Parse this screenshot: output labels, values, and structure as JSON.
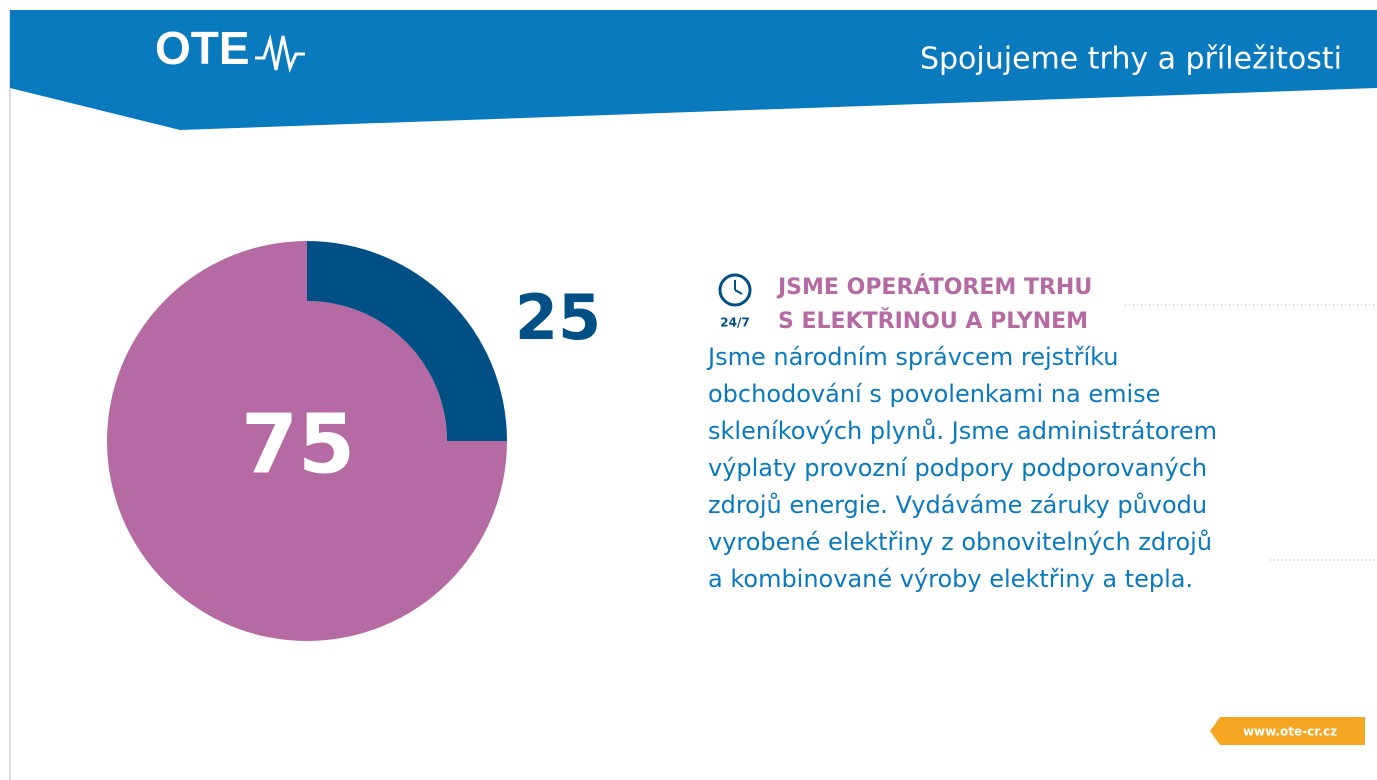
{
  "header": {
    "logo": "OTE",
    "tagline": "Spojujeme trhy a příležitosti"
  },
  "chart_data": {
    "type": "pie",
    "values": [
      25,
      75
    ],
    "colors": [
      "#004f85",
      "#b56aa4"
    ]
  },
  "section": {
    "icon_label": "24/7",
    "title_lines": [
      "JSME OPERÁTOREM TRHU",
      "S ELEKTŘINOU A PLYNEM"
    ],
    "body_lines": [
      "Jsme národním správcem rejstříku",
      "obchodování s povolenkami na emise",
      "skleníkových plynů. Jsme administrátorem",
      "výplaty provozní podpory podporovaných",
      "zdrojů energie. Vydáváme záruky původu",
      "vyrobené elektřiny z obnovitelných zdrojů",
      "a kombinované výroby elektřiny a tepla."
    ]
  },
  "footer": {
    "url": "www.ote-cr.cz"
  }
}
